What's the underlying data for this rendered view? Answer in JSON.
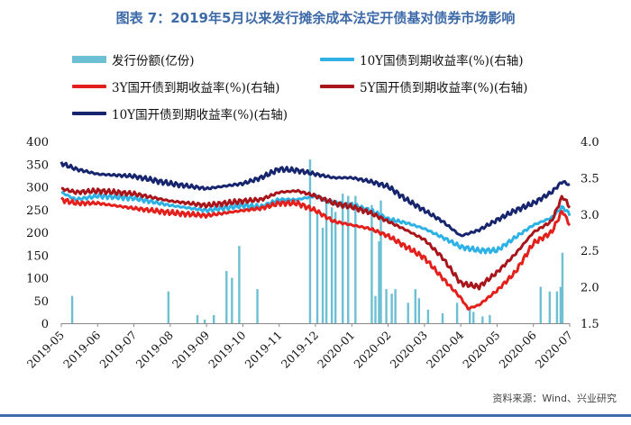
{
  "chart_data": {
    "type": "bar+line",
    "title": "图表 7：2019年5月以来发行摊余成本法定开债基对债券市场影响",
    "source": "资料来源：Wind、兴业研究",
    "x_ticks": [
      "2019-05",
      "2019-06",
      "2019-07",
      "2019-08",
      "2019-09",
      "2019-10",
      "2019-11",
      "2019-12",
      "2020-01",
      "2020-02",
      "2020-03",
      "2020-04",
      "2020-05",
      "2020-06",
      "2020-07"
    ],
    "y_left": {
      "min": 0,
      "max": 400,
      "ticks": [
        "0",
        "50",
        "100",
        "150",
        "200",
        "250",
        "300",
        "350",
        "400"
      ]
    },
    "y_right": {
      "min": 1.5,
      "max": 4.0,
      "ticks": [
        "1.5",
        "2.0",
        "2.5",
        "3.0",
        "3.5",
        "4.0"
      ]
    },
    "legend": [
      {
        "name": "发行份额(亿份)",
        "color": "#6dbfd4",
        "kind": "bar"
      },
      {
        "name": "10Y国债到期收益率(%)(右轴)",
        "color": "#2eb2e6",
        "kind": "line"
      },
      {
        "name": "3Y国开债到期收益率(%)(右轴)",
        "color": "#e3201b",
        "kind": "line"
      },
      {
        "name": "5Y国开债到期收益率(%)(右轴)",
        "color": "#a8151b",
        "kind": "line"
      },
      {
        "name": "10Y国开债到期收益率(%)(右轴)",
        "color": "#17256e",
        "kind": "line"
      }
    ],
    "bars": {
      "name": "发行份额(亿份)",
      "color": "#6dbfd4",
      "points": [
        [
          0.3,
          60
        ],
        [
          2.95,
          70
        ],
        [
          3.75,
          18
        ],
        [
          3.95,
          8
        ],
        [
          4.2,
          18
        ],
        [
          4.55,
          115
        ],
        [
          4.7,
          100
        ],
        [
          4.9,
          170
        ],
        [
          5.4,
          75
        ],
        [
          6.85,
          360
        ],
        [
          7.05,
          240
        ],
        [
          7.2,
          210
        ],
        [
          7.3,
          265
        ],
        [
          7.45,
          255
        ],
        [
          7.55,
          245
        ],
        [
          7.75,
          285
        ],
        [
          7.9,
          280
        ],
        [
          8.1,
          280
        ],
        [
          8.55,
          260
        ],
        [
          8.65,
          60
        ],
        [
          8.75,
          180
        ],
        [
          8.8,
          270
        ],
        [
          8.95,
          75
        ],
        [
          9.1,
          65
        ],
        [
          9.2,
          75
        ],
        [
          9.55,
          45
        ],
        [
          9.75,
          75
        ],
        [
          9.85,
          55
        ],
        [
          10.1,
          30
        ],
        [
          10.5,
          22
        ],
        [
          10.9,
          45
        ],
        [
          11.25,
          30
        ],
        [
          11.35,
          25
        ],
        [
          11.6,
          15
        ],
        [
          11.8,
          18
        ],
        [
          13.2,
          80
        ],
        [
          13.45,
          70
        ],
        [
          13.65,
          70
        ],
        [
          13.75,
          80
        ],
        [
          13.8,
          155
        ]
      ]
    },
    "series": [
      {
        "name": "10Y国债到期收益率(%)(右轴)",
        "color": "#2eb2e6",
        "key": [
          [
            0,
            3.3
          ],
          [
            0.4,
            3.2
          ],
          [
            1,
            3.25
          ],
          [
            2,
            3.22
          ],
          [
            3,
            3.12
          ],
          [
            4,
            3.05
          ],
          [
            5,
            3.12
          ],
          [
            5.5,
            3.1
          ],
          [
            6,
            3.2
          ],
          [
            6.5,
            3.2
          ],
          [
            7,
            3.25
          ],
          [
            7.5,
            3.15
          ],
          [
            8,
            3.12
          ],
          [
            8.5,
            3.05
          ],
          [
            9,
            2.93
          ],
          [
            9.5,
            2.88
          ],
          [
            10,
            2.8
          ],
          [
            10.5,
            2.68
          ],
          [
            11,
            2.55
          ],
          [
            11.5,
            2.5
          ],
          [
            12,
            2.5
          ],
          [
            12.5,
            2.68
          ],
          [
            13,
            2.85
          ],
          [
            13.5,
            2.95
          ],
          [
            13.8,
            3.1
          ],
          [
            14,
            3.0
          ]
        ]
      },
      {
        "name": "3Y国开债到期收益率(%)(右轴)",
        "color": "#e3201b",
        "key": [
          [
            0,
            3.2
          ],
          [
            0.4,
            3.15
          ],
          [
            1,
            3.15
          ],
          [
            2,
            3.08
          ],
          [
            3,
            3.02
          ],
          [
            4,
            2.98
          ],
          [
            5,
            3.05
          ],
          [
            5.5,
            3.08
          ],
          [
            6,
            3.15
          ],
          [
            6.5,
            3.15
          ],
          [
            7,
            3.05
          ],
          [
            7.5,
            2.9
          ],
          [
            8,
            2.85
          ],
          [
            8.5,
            2.8
          ],
          [
            9,
            2.7
          ],
          [
            9.5,
            2.55
          ],
          [
            10,
            2.4
          ],
          [
            10.5,
            2.12
          ],
          [
            11,
            1.85
          ],
          [
            11.2,
            1.7
          ],
          [
            11.5,
            1.75
          ],
          [
            12,
            1.95
          ],
          [
            12.5,
            2.2
          ],
          [
            13,
            2.6
          ],
          [
            13.5,
            2.75
          ],
          [
            13.8,
            3.05
          ],
          [
            14,
            2.85
          ]
        ]
      },
      {
        "name": "5Y国开债到期收益率(%)(右轴)",
        "color": "#a8151b",
        "key": [
          [
            0,
            3.35
          ],
          [
            0.4,
            3.3
          ],
          [
            1,
            3.32
          ],
          [
            2,
            3.28
          ],
          [
            3,
            3.18
          ],
          [
            4,
            3.12
          ],
          [
            5,
            3.18
          ],
          [
            5.5,
            3.2
          ],
          [
            6,
            3.3
          ],
          [
            6.5,
            3.32
          ],
          [
            7,
            3.25
          ],
          [
            7.5,
            3.15
          ],
          [
            8,
            3.1
          ],
          [
            8.5,
            3.02
          ],
          [
            9,
            2.9
          ],
          [
            9.5,
            2.78
          ],
          [
            10,
            2.65
          ],
          [
            10.5,
            2.4
          ],
          [
            11,
            2.05
          ],
          [
            11.5,
            2.0
          ],
          [
            12,
            2.2
          ],
          [
            12.5,
            2.45
          ],
          [
            13,
            2.75
          ],
          [
            13.5,
            2.9
          ],
          [
            13.8,
            3.25
          ],
          [
            14,
            3.1
          ]
        ]
      },
      {
        "name": "10Y国开债到期收益率(%)(右轴)",
        "color": "#17256e",
        "key": [
          [
            0,
            3.7
          ],
          [
            0.4,
            3.62
          ],
          [
            1,
            3.55
          ],
          [
            2,
            3.52
          ],
          [
            3,
            3.42
          ],
          [
            4,
            3.35
          ],
          [
            5,
            3.42
          ],
          [
            5.5,
            3.5
          ],
          [
            6,
            3.62
          ],
          [
            6.5,
            3.6
          ],
          [
            7,
            3.55
          ],
          [
            7.5,
            3.5
          ],
          [
            8,
            3.5
          ],
          [
            8.5,
            3.45
          ],
          [
            9,
            3.38
          ],
          [
            9.5,
            3.2
          ],
          [
            10,
            3.05
          ],
          [
            10.5,
            2.9
          ],
          [
            11,
            2.7
          ],
          [
            11.5,
            2.78
          ],
          [
            12,
            2.92
          ],
          [
            12.5,
            3.05
          ],
          [
            13,
            3.15
          ],
          [
            13.5,
            3.3
          ],
          [
            13.8,
            3.45
          ],
          [
            14,
            3.4
          ]
        ]
      }
    ]
  }
}
